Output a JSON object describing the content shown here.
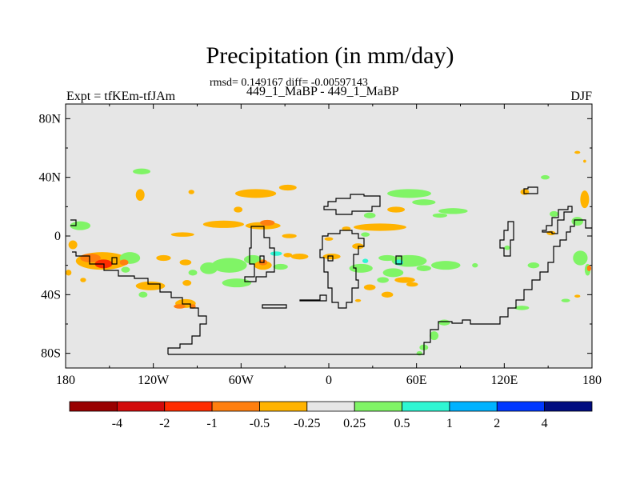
{
  "title": "Precipitation (in mm/day)",
  "stats_text": "rmsd= 0.149167 diff= -0.00597143",
  "subtitle": "449_1_MaBP - 449_1_MaBP",
  "left_label": "Expt = tfKEm-tfJAm",
  "right_label": "DJF",
  "colors": {
    "background_field": "#e6e6e6",
    "coastline": "#000000",
    "levels": [
      "#990000",
      "#d20a0a",
      "#ff2c00",
      "#ff7f0f",
      "#ffb300",
      "#e6e6e6",
      "#80f466",
      "#2ff6d3",
      "#00b2ff",
      "#0038ff",
      "#000c80"
    ]
  },
  "chart_data": {
    "type": "heatmap",
    "projection": "cylindrical-equidistant",
    "xlim": [
      -180,
      180
    ],
    "ylim": [
      -90,
      90
    ],
    "x_ticks": [
      {
        "value": -180,
        "label": "180"
      },
      {
        "value": -120,
        "label": "120W"
      },
      {
        "value": -60,
        "label": "60W"
      },
      {
        "value": 0,
        "label": "0"
      },
      {
        "value": 60,
        "label": "60E"
      },
      {
        "value": 120,
        "label": "120E"
      },
      {
        "value": 180,
        "label": "180"
      }
    ],
    "y_ticks": [
      {
        "value": 80,
        "label": "80N"
      },
      {
        "value": 40,
        "label": "40N"
      },
      {
        "value": 0,
        "label": "0"
      },
      {
        "value": -40,
        "label": "40S"
      },
      {
        "value": -80,
        "label": "80S"
      }
    ],
    "colorbar": {
      "labels": [
        "-4",
        "-2",
        "-1",
        "-0.5",
        "-0.25",
        "0.25",
        "0.5",
        "1",
        "2",
        "4"
      ]
    },
    "anomalies": [
      {
        "lon": -128,
        "lat": 44,
        "rx": 6,
        "ry": 2,
        "level": 6
      },
      {
        "lon": -129,
        "lat": 28,
        "rx": 3,
        "ry": 4,
        "level": 4
      },
      {
        "lon": -94,
        "lat": 30,
        "rx": 2,
        "ry": 1.5,
        "level": 4
      },
      {
        "lon": -50,
        "lat": 29,
        "rx": 14,
        "ry": 3,
        "level": 4
      },
      {
        "lon": -28,
        "lat": 33,
        "rx": 6,
        "ry": 2,
        "level": 4
      },
      {
        "lon": -62,
        "lat": 18,
        "rx": 3,
        "ry": 2,
        "level": 4
      },
      {
        "lon": -72,
        "lat": 8,
        "rx": 14,
        "ry": 2.5,
        "level": 4
      },
      {
        "lon": -45,
        "lat": 7,
        "rx": 12,
        "ry": 2.5,
        "level": 4
      },
      {
        "lon": -42,
        "lat": 9,
        "rx": 5,
        "ry": 2,
        "level": 3
      },
      {
        "lon": -100,
        "lat": 1,
        "rx": 8,
        "ry": 1.5,
        "level": 4
      },
      {
        "lon": -27,
        "lat": 0,
        "rx": 5,
        "ry": 1.5,
        "level": 4
      },
      {
        "lon": 0,
        "lat": -2,
        "rx": 3,
        "ry": 1.2,
        "level": 4
      },
      {
        "lon": 12,
        "lat": 5,
        "rx": 3,
        "ry": 1.5,
        "level": 4
      },
      {
        "lon": 20,
        "lat": -7,
        "rx": 4,
        "ry": 2,
        "level": 4
      },
      {
        "lon": 35,
        "lat": 6,
        "rx": 18,
        "ry": 2.5,
        "level": 4
      },
      {
        "lon": 55,
        "lat": 29,
        "rx": 15,
        "ry": 3,
        "level": 6
      },
      {
        "lon": 65,
        "lat": 23,
        "rx": 8,
        "ry": 2,
        "level": 6
      },
      {
        "lon": 85,
        "lat": 17,
        "rx": 10,
        "ry": 2,
        "level": 6
      },
      {
        "lon": 76,
        "lat": 14,
        "rx": 5,
        "ry": 1.5,
        "level": 6
      },
      {
        "lon": 46,
        "lat": 18,
        "rx": 6,
        "ry": 2,
        "level": 4
      },
      {
        "lon": 28,
        "lat": 14,
        "rx": 4,
        "ry": 2,
        "level": 6
      },
      {
        "lon": 25,
        "lat": 1,
        "rx": 3,
        "ry": 1.5,
        "level": 6
      },
      {
        "lon": 134,
        "lat": 30,
        "rx": 3,
        "ry": 2,
        "level": 4
      },
      {
        "lon": 148,
        "lat": 40,
        "rx": 3,
        "ry": 1.5,
        "level": 6
      },
      {
        "lon": 154,
        "lat": 15,
        "rx": 3,
        "ry": 2,
        "level": 6
      },
      {
        "lon": 170,
        "lat": 10,
        "rx": 4,
        "ry": 3,
        "level": 6
      },
      {
        "lon": 175,
        "lat": 25,
        "rx": 3,
        "ry": 6,
        "level": 4
      },
      {
        "lon": 152,
        "lat": 2,
        "rx": 3,
        "ry": 1.5,
        "level": 4
      },
      {
        "lon": 172,
        "lat": -15,
        "rx": 5,
        "ry": 5,
        "level": 6
      },
      {
        "lon": 177,
        "lat": -23,
        "rx": 2,
        "ry": 4,
        "level": 6
      },
      {
        "lon": 178,
        "lat": -22,
        "rx": 1.5,
        "ry": 2,
        "level": 3
      },
      {
        "lon": 170,
        "lat": 57,
        "rx": 2,
        "ry": 1,
        "level": 4
      },
      {
        "lon": 175,
        "lat": 51,
        "rx": 1,
        "ry": 1,
        "level": 4
      },
      {
        "lon": -170,
        "lat": 7,
        "rx": 7,
        "ry": 3,
        "level": 6
      },
      {
        "lon": -175,
        "lat": -6,
        "rx": 3,
        "ry": 3,
        "level": 4
      },
      {
        "lon": -155,
        "lat": -17,
        "rx": 18,
        "ry": 6,
        "level": 4
      },
      {
        "lon": -163,
        "lat": -15,
        "rx": 7,
        "ry": 3,
        "level": 3
      },
      {
        "lon": -154,
        "lat": -19,
        "rx": 6,
        "ry": 3,
        "level": 2
      },
      {
        "lon": -136,
        "lat": -15,
        "rx": 7,
        "ry": 4,
        "level": 6
      },
      {
        "lon": -140,
        "lat": -18,
        "rx": 3,
        "ry": 2,
        "level": 3
      },
      {
        "lon": -139,
        "lat": -23,
        "rx": 3,
        "ry": 2,
        "level": 6
      },
      {
        "lon": -178,
        "lat": -25,
        "rx": 2,
        "ry": 2,
        "level": 4
      },
      {
        "lon": -168,
        "lat": -30,
        "rx": 2,
        "ry": 1.5,
        "level": 4
      },
      {
        "lon": -122,
        "lat": -34,
        "rx": 10,
        "ry": 3,
        "level": 4
      },
      {
        "lon": -113,
        "lat": -15,
        "rx": 5,
        "ry": 2,
        "level": 4
      },
      {
        "lon": -98,
        "lat": -18,
        "rx": 4,
        "ry": 2,
        "level": 4
      },
      {
        "lon": -97,
        "lat": -32,
        "rx": 3,
        "ry": 2,
        "level": 4
      },
      {
        "lon": -98,
        "lat": -46,
        "rx": 7,
        "ry": 3,
        "level": 4
      },
      {
        "lon": -102,
        "lat": -48,
        "rx": 4,
        "ry": 1.5,
        "level": 3
      },
      {
        "lon": -93,
        "lat": -48,
        "rx": 2,
        "ry": 1.5,
        "level": 3
      },
      {
        "lon": -127,
        "lat": -40,
        "rx": 3,
        "ry": 2,
        "level": 6
      },
      {
        "lon": -93,
        "lat": -25,
        "rx": 3,
        "ry": 2,
        "level": 6
      },
      {
        "lon": -82,
        "lat": -22,
        "rx": 6,
        "ry": 4,
        "level": 6
      },
      {
        "lon": -68,
        "lat": -20,
        "rx": 12,
        "ry": 5,
        "level": 6
      },
      {
        "lon": -63,
        "lat": -32,
        "rx": 10,
        "ry": 3,
        "level": 6
      },
      {
        "lon": -52,
        "lat": -16,
        "rx": 6,
        "ry": 3,
        "level": 6
      },
      {
        "lon": -45,
        "lat": -20,
        "rx": 6,
        "ry": 3,
        "level": 4
      },
      {
        "lon": -45,
        "lat": -18,
        "rx": 3,
        "ry": 2,
        "level": 3
      },
      {
        "lon": -33,
        "lat": -21,
        "rx": 5,
        "ry": 2,
        "level": 6
      },
      {
        "lon": -36,
        "lat": -12,
        "rx": 4,
        "ry": 1.5,
        "level": 7
      },
      {
        "lon": -20,
        "lat": -14,
        "rx": 6,
        "ry": 2,
        "level": 4
      },
      {
        "lon": -28,
        "lat": -13,
        "rx": 3,
        "ry": 1.5,
        "level": 4
      },
      {
        "lon": 2,
        "lat": -14,
        "rx": 6,
        "ry": 2,
        "level": 4
      },
      {
        "lon": 22,
        "lat": -22,
        "rx": 8,
        "ry": 3,
        "level": 6
      },
      {
        "lon": 25,
        "lat": -17,
        "rx": 2,
        "ry": 1.5,
        "level": 7
      },
      {
        "lon": 40,
        "lat": -15,
        "rx": 6,
        "ry": 2,
        "level": 6
      },
      {
        "lon": 44,
        "lat": -25,
        "rx": 7,
        "ry": 3,
        "level": 6
      },
      {
        "lon": 37,
        "lat": -30,
        "rx": 4,
        "ry": 2,
        "level": 6
      },
      {
        "lon": 55,
        "lat": -17,
        "rx": 12,
        "ry": 4,
        "level": 6
      },
      {
        "lon": 48,
        "lat": -18,
        "rx": 3,
        "ry": 2,
        "level": 7
      },
      {
        "lon": 80,
        "lat": -20,
        "rx": 10,
        "ry": 3,
        "level": 6
      },
      {
        "lon": 65,
        "lat": -22,
        "rx": 5,
        "ry": 2,
        "level": 6
      },
      {
        "lon": 100,
        "lat": -20,
        "rx": 2,
        "ry": 1.5,
        "level": 6
      },
      {
        "lon": 140,
        "lat": -20,
        "rx": 4,
        "ry": 2,
        "level": 6
      },
      {
        "lon": 122,
        "lat": -8,
        "rx": 2,
        "ry": 1.5,
        "level": 6
      },
      {
        "lon": 40,
        "lat": -40,
        "rx": 4,
        "ry": 2,
        "level": 4
      },
      {
        "lon": 52,
        "lat": -30,
        "rx": 7,
        "ry": 2,
        "level": 4
      },
      {
        "lon": 57,
        "lat": -33,
        "rx": 4,
        "ry": 1.5,
        "level": 4
      },
      {
        "lon": 28,
        "lat": -35,
        "rx": 4,
        "ry": 2,
        "level": 4
      },
      {
        "lon": 20,
        "lat": -44,
        "rx": 2,
        "ry": 1,
        "level": 4
      },
      {
        "lon": 79,
        "lat": -59,
        "rx": 4,
        "ry": 2,
        "level": 6
      },
      {
        "lon": 72,
        "lat": -68,
        "rx": 3,
        "ry": 3,
        "level": 6
      },
      {
        "lon": 65,
        "lat": -76,
        "rx": 3,
        "ry": 2,
        "level": 6
      },
      {
        "lon": 62,
        "lat": -80,
        "rx": 2,
        "ry": 1.5,
        "level": 6
      },
      {
        "lon": 132,
        "lat": -49,
        "rx": 5,
        "ry": 1.5,
        "level": 6
      },
      {
        "lon": 162,
        "lat": -44,
        "rx": 3,
        "ry": 1.2,
        "level": 6
      },
      {
        "lon": 170,
        "lat": -41,
        "rx": 2,
        "ry": 1,
        "level": 4
      }
    ]
  }
}
